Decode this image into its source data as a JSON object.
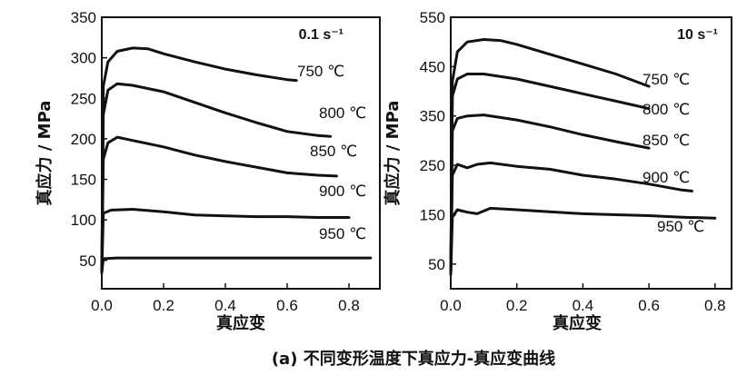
{
  "caption": "(a) 不同变形温度下真应力-真应变曲线",
  "chart_data": [
    {
      "type": "line",
      "rate_label": "0.1 s⁻¹",
      "xlabel": "真应变",
      "ylabel": "真应力 / MPa",
      "xlim": [
        0,
        0.9
      ],
      "ylim": [
        15,
        350
      ],
      "xticks": [
        0.0,
        0.2,
        0.4,
        0.6,
        0.8
      ],
      "xtick_labels": [
        "0.0",
        "0.2",
        "0.4",
        "0.6",
        "0.8"
      ],
      "yticks": [
        50,
        100,
        150,
        200,
        250,
        300,
        350
      ],
      "ytick_labels": [
        "50",
        "100",
        "150",
        "200",
        "250",
        "300",
        "350"
      ],
      "grid": false,
      "series": [
        {
          "name": "750 ℃",
          "x": [
            0.0,
            0.005,
            0.02,
            0.05,
            0.1,
            0.15,
            0.2,
            0.3,
            0.4,
            0.5,
            0.6,
            0.63
          ],
          "y": [
            35,
            265,
            295,
            308,
            312,
            311,
            305,
            295,
            286,
            279,
            273,
            272
          ]
        },
        {
          "name": "800 ℃",
          "x": [
            0.0,
            0.005,
            0.02,
            0.05,
            0.1,
            0.2,
            0.3,
            0.4,
            0.5,
            0.6,
            0.7,
            0.74
          ],
          "y": [
            35,
            230,
            260,
            268,
            266,
            258,
            245,
            232,
            220,
            209,
            204,
            203
          ]
        },
        {
          "name": "850 ℃",
          "x": [
            0.0,
            0.005,
            0.02,
            0.05,
            0.1,
            0.2,
            0.3,
            0.4,
            0.5,
            0.6,
            0.7,
            0.76
          ],
          "y": [
            35,
            175,
            195,
            202,
            198,
            190,
            180,
            172,
            165,
            158,
            155,
            154
          ]
        },
        {
          "name": "900 ℃",
          "x": [
            0.0,
            0.005,
            0.03,
            0.1,
            0.2,
            0.3,
            0.4,
            0.5,
            0.6,
            0.7,
            0.8
          ],
          "y": [
            35,
            108,
            112,
            113,
            110,
            106,
            105,
            104,
            104,
            103,
            103
          ]
        },
        {
          "name": "950 ℃",
          "x": [
            0.0,
            0.005,
            0.05,
            0.2,
            0.4,
            0.6,
            0.8,
            0.87
          ],
          "y": [
            35,
            52,
            53,
            53,
            53,
            53,
            53,
            53
          ]
        }
      ]
    },
    {
      "type": "line",
      "rate_label": "10 s⁻¹",
      "xlabel": "真应变",
      "ylabel": "真应力 / MPa",
      "xlim": [
        0,
        0.85
      ],
      "ylim": [
        0,
        550
      ],
      "xticks": [
        0.0,
        0.2,
        0.4,
        0.6,
        0.8
      ],
      "xtick_labels": [
        "0.0",
        "0.2",
        "0.4",
        "0.6",
        "0.8"
      ],
      "yticks": [
        50,
        150,
        250,
        350,
        450,
        550
      ],
      "ytick_labels": [
        "50",
        "150",
        "250",
        "350",
        "450",
        "550"
      ],
      "grid": false,
      "series": [
        {
          "name": "750 ℃",
          "x": [
            0.0,
            0.005,
            0.02,
            0.05,
            0.1,
            0.15,
            0.2,
            0.3,
            0.4,
            0.5,
            0.6
          ],
          "y": [
            30,
            420,
            480,
            500,
            505,
            503,
            495,
            475,
            455,
            435,
            410
          ]
        },
        {
          "name": "800 ℃",
          "x": [
            0.0,
            0.005,
            0.02,
            0.05,
            0.1,
            0.2,
            0.3,
            0.4,
            0.5,
            0.6
          ],
          "y": [
            30,
            390,
            425,
            435,
            435,
            425,
            410,
            395,
            380,
            365
          ]
        },
        {
          "name": "850 ℃",
          "x": [
            0.0,
            0.005,
            0.02,
            0.05,
            0.1,
            0.2,
            0.3,
            0.4,
            0.5,
            0.6
          ],
          "y": [
            30,
            320,
            345,
            350,
            352,
            342,
            328,
            312,
            298,
            285
          ]
        },
        {
          "name": "900 ℃",
          "x": [
            0.0,
            0.005,
            0.02,
            0.05,
            0.08,
            0.12,
            0.2,
            0.3,
            0.4,
            0.5,
            0.6,
            0.7,
            0.73
          ],
          "y": [
            30,
            230,
            252,
            245,
            252,
            255,
            248,
            242,
            230,
            222,
            212,
            200,
            198
          ]
        },
        {
          "name": "950 ℃",
          "x": [
            0.0,
            0.005,
            0.02,
            0.05,
            0.08,
            0.12,
            0.2,
            0.3,
            0.4,
            0.5,
            0.6,
            0.7,
            0.8
          ],
          "y": [
            30,
            145,
            160,
            155,
            152,
            163,
            160,
            156,
            152,
            150,
            148,
            145,
            143
          ]
        }
      ]
    }
  ]
}
